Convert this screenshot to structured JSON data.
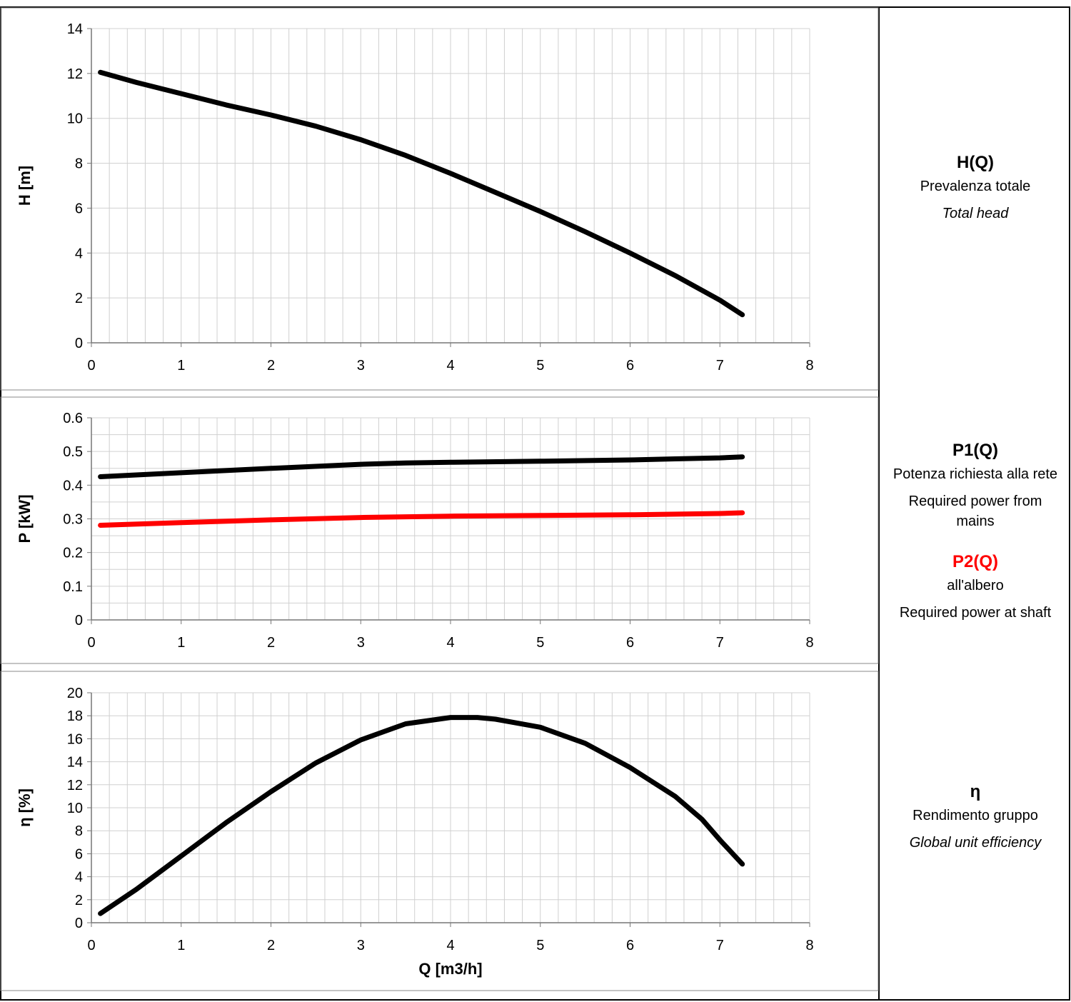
{
  "chart_data": [
    {
      "type": "line",
      "xlabel": "",
      "ylabel": "H [m]",
      "xlim": [
        0,
        8
      ],
      "ylim": [
        0,
        14
      ],
      "x_ticks": [
        "0",
        "1",
        "2",
        "3",
        "4",
        "5",
        "6",
        "7",
        "8"
      ],
      "y_ticks": [
        "0",
        "2",
        "4",
        "6",
        "8",
        "10",
        "12",
        "14"
      ],
      "grid": true,
      "series": [
        {
          "color": "#000000",
          "x": [
            0.1,
            0.5,
            1,
            1.5,
            2,
            2.5,
            3,
            3.5,
            4,
            4.5,
            5,
            5.5,
            6,
            6.5,
            7,
            7.25
          ],
          "y": [
            12.05,
            11.6,
            11.1,
            10.6,
            10.15,
            9.65,
            9.05,
            8.35,
            7.55,
            6.7,
            5.85,
            4.95,
            4.0,
            3.0,
            1.9,
            1.25
          ]
        }
      ],
      "legend": {
        "title": "H(Q)",
        "lines": [
          {
            "text": "Prevalenza totale",
            "italic": false
          },
          {
            "text": "Total head",
            "italic": true
          }
        ]
      }
    },
    {
      "type": "line",
      "xlabel": "",
      "ylabel": "P [kW]",
      "xlim": [
        0,
        8
      ],
      "ylim": [
        0,
        0.6
      ],
      "x_ticks": [
        "0",
        "1",
        "2",
        "3",
        "4",
        "5",
        "6",
        "7",
        "8"
      ],
      "y_ticks": [
        "0",
        "0.1",
        "0.2",
        "0.3",
        "0.4",
        "0.5",
        "0.6"
      ],
      "grid": true,
      "series": [
        {
          "name": "P1(Q)",
          "color": "#000000",
          "x": [
            0.1,
            1,
            2,
            3,
            3.5,
            4,
            5,
            6,
            6.5,
            7,
            7.25
          ],
          "y": [
            0.425,
            0.437,
            0.45,
            0.462,
            0.466,
            0.468,
            0.471,
            0.475,
            0.478,
            0.481,
            0.484
          ]
        },
        {
          "name": "P2(Q)",
          "color": "#ff0000",
          "x": [
            0.1,
            1,
            2,
            3,
            4,
            5,
            6,
            7,
            7.25
          ],
          "y": [
            0.281,
            0.289,
            0.297,
            0.304,
            0.308,
            0.31,
            0.312,
            0.316,
            0.318
          ]
        }
      ],
      "legend": {
        "title": "P1(Q)",
        "lines": [
          {
            "text": "Potenza richiesta alla rete",
            "italic": false
          },
          {
            "text": "Required power from mains",
            "italic": false
          }
        ],
        "title2": "P2(Q)",
        "lines2": [
          {
            "text": "all'albero",
            "italic": false
          },
          {
            "text": "Required power at shaft",
            "italic": false
          }
        ]
      }
    },
    {
      "type": "line",
      "xlabel": "Q [m3/h]",
      "ylabel": "η [%]",
      "xlim": [
        0,
        8
      ],
      "ylim": [
        0,
        20
      ],
      "x_ticks": [
        "0",
        "1",
        "2",
        "3",
        "4",
        "5",
        "6",
        "7",
        "8"
      ],
      "y_ticks": [
        "0",
        "2",
        "4",
        "6",
        "8",
        "10",
        "12",
        "14",
        "16",
        "18",
        "20"
      ],
      "grid": true,
      "series": [
        {
          "color": "#000000",
          "x": [
            0.1,
            0.5,
            1,
            1.5,
            2,
            2.5,
            3,
            3.5,
            4,
            4.3,
            4.5,
            5,
            5.5,
            6,
            6.5,
            6.8,
            7,
            7.25
          ],
          "y": [
            0.8,
            2.9,
            5.8,
            8.7,
            11.4,
            13.9,
            15.9,
            17.3,
            17.85,
            17.85,
            17.7,
            17.0,
            15.6,
            13.5,
            11.0,
            9.0,
            7.2,
            5.1
          ]
        }
      ],
      "legend": {
        "title": "η",
        "lines": [
          {
            "text": "Rendimento gruppo",
            "italic": false
          },
          {
            "text": "Global unit efficiency",
            "italic": true
          }
        ]
      }
    }
  ]
}
